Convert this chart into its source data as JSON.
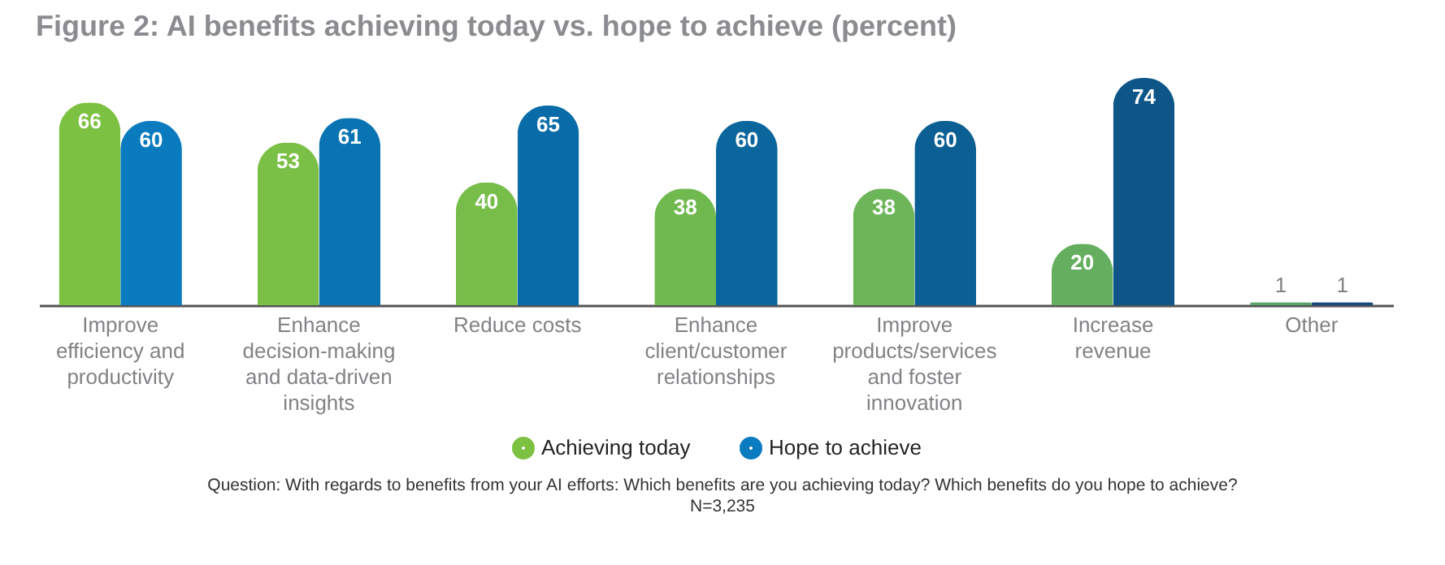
{
  "chart_data": {
    "type": "bar",
    "title": "Figure 2: AI benefits achieving today vs. hope to achieve (percent)",
    "categories": [
      "Improve efficiency and productivity",
      "Enhance decision-making and data-driven insights",
      "Reduce costs",
      "Enhance client/customer relationships",
      "Improve products/services and foster innovation",
      "Increase revenue",
      "Other"
    ],
    "series": [
      {
        "name": "Achieving today",
        "color": "#7dc142",
        "colors": [
          "#7dc142",
          "#7bc046",
          "#76bd4a",
          "#70b94f",
          "#6cb558",
          "#65ae60",
          "#5aa56a"
        ],
        "values": [
          66,
          53,
          40,
          38,
          38,
          20,
          1
        ]
      },
      {
        "name": "Hope to achieve",
        "color": "#0a7bbf",
        "colors": [
          "#0a7bbf",
          "#0a74b3",
          "#096ca8",
          "#0a669d",
          "#0c5f93",
          "#0e5688",
          "#124a7c"
        ],
        "values": [
          60,
          61,
          65,
          60,
          60,
          74,
          1
        ]
      }
    ],
    "data_labels": true,
    "legend": "bottom",
    "annotations": [
      "Question: With regards to benefits from your AI efforts: Which benefits are you achieving today? Which benefits do you hope to achieve?",
      "N=3,235"
    ]
  }
}
